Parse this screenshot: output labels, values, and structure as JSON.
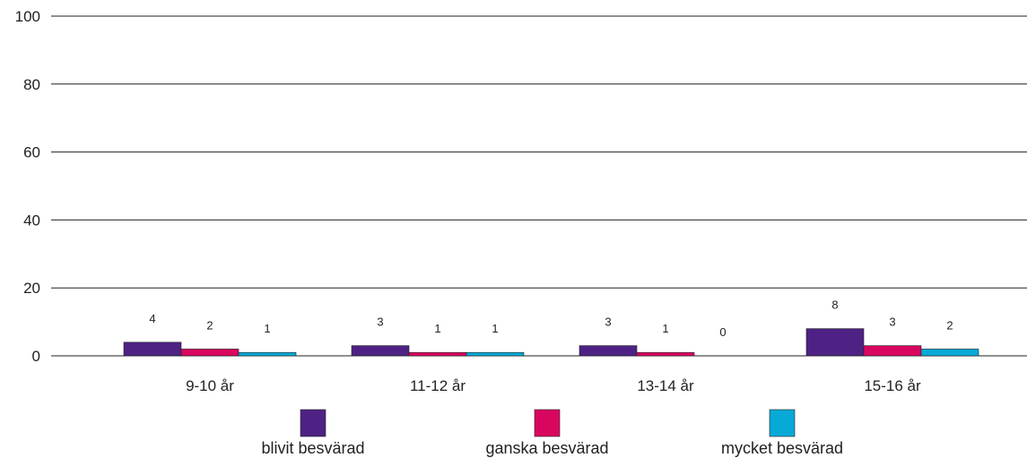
{
  "chart_data": {
    "type": "bar",
    "categories": [
      "9-10 år",
      "11-12 år",
      "13-14 år",
      "15-16 år"
    ],
    "series": [
      {
        "name": "blivit besvärad",
        "values": [
          4,
          3,
          3,
          8
        ],
        "color": "#4e2284"
      },
      {
        "name": "ganska besvärad",
        "values": [
          2,
          1,
          1,
          3
        ],
        "color": "#d9065f"
      },
      {
        "name": "mycket besvärad",
        "values": [
          1,
          1,
          0,
          2
        ],
        "color": "#07a9d6"
      }
    ],
    "ylim": [
      0,
      100
    ],
    "yticks": [
      0,
      20,
      40,
      60,
      80,
      100
    ],
    "grid": true,
    "legend": "bottom"
  }
}
